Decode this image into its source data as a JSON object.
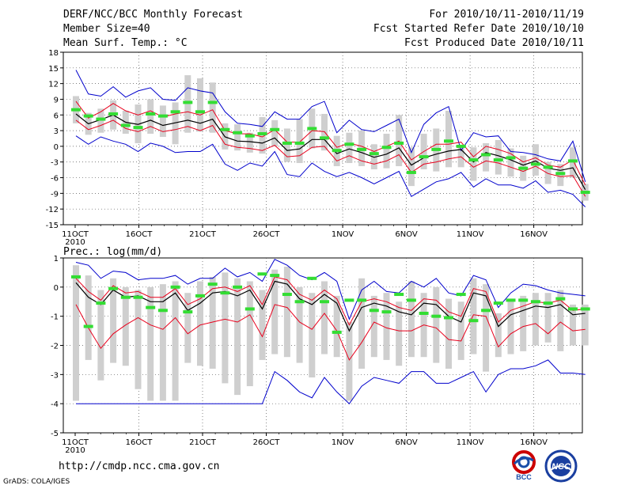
{
  "header": {
    "title": "DERF/NCC/BCC Monthly Forecast",
    "member_size": "Member Size=40",
    "variable": "Mean Surf. Temp.: °C",
    "period": "For 2010/10/11-2010/11/19",
    "started": "Fcst Started Refer Date 2010/10/10",
    "produced": "Fcst Produced Date 2010/10/11"
  },
  "footer": {
    "url": "http://cmdp.ncc.cma.gov.cn",
    "grads": "GrADS: COLA/IGES",
    "logo_bcc": "BCC",
    "logo_ncc": "NCC"
  },
  "colors": {
    "bar": "#cfcfcf",
    "mean": "#000000",
    "spread": "#e8001c",
    "extreme": "#0000cc",
    "marker": "#33dd33",
    "grid": "#555555"
  },
  "chart_data": [
    {
      "type": "line",
      "title": "Mean Surf. Temp.: °C",
      "ylim": [
        -15,
        18
      ],
      "yticks": [
        -15,
        -12,
        -9,
        -6,
        -3,
        0,
        3,
        6,
        9,
        12,
        15,
        18
      ],
      "x_day_range": [
        1,
        40
      ],
      "xticks": [
        {
          "day": 1,
          "label": "11OCT"
        },
        {
          "day": 6,
          "label": "16OCT"
        },
        {
          "day": 11,
          "label": "21OCT"
        },
        {
          "day": 16,
          "label": "26OCT"
        },
        {
          "day": 22,
          "label": "1NOV"
        },
        {
          "day": 27,
          "label": "6NOV"
        },
        {
          "day": 32,
          "label": "11NOV"
        },
        {
          "day": 37,
          "label": "16NOV"
        }
      ],
      "year_label": "2010",
      "series": [
        {
          "name": "mean",
          "values": [
            6.2,
            4.3,
            5.1,
            6.0,
            4.6,
            4.2,
            5.0,
            4.0,
            4.5,
            5.0,
            4.4,
            5.2,
            1.8,
            1.0,
            0.9,
            0.6,
            1.6,
            -0.8,
            -0.5,
            1.3,
            1.3,
            -1.4,
            -0.5,
            -1.2,
            -2.1,
            -1.5,
            -0.3,
            -3.6,
            -2.2,
            -1.5,
            -0.9,
            -0.6,
            -3.0,
            -1.2,
            -1.8,
            -2.6,
            -3.6,
            -2.8,
            -4.2,
            -4.6,
            -4.1,
            -8.3
          ]
        },
        {
          "name": "upper_spread",
          "values": [
            8.6,
            5.4,
            6.6,
            8.2,
            6.8,
            6.0,
            6.8,
            5.6,
            6.2,
            6.6,
            6.0,
            7.0,
            3.0,
            2.4,
            2.4,
            1.8,
            3.2,
            0.8,
            0.8,
            3.0,
            2.8,
            -0.2,
            0.6,
            0.0,
            -1.0,
            0.0,
            1.0,
            -2.6,
            -1.0,
            0.4,
            0.4,
            0.8,
            -2.0,
            0.0,
            -0.6,
            -1.4,
            -3.0,
            -2.2,
            -3.6,
            -4.0,
            -2.6,
            -7.4
          ]
        },
        {
          "name": "lower_spread",
          "values": [
            5.0,
            3.2,
            4.0,
            5.0,
            3.4,
            2.8,
            3.8,
            2.8,
            3.2,
            3.8,
            3.0,
            4.0,
            0.4,
            -0.2,
            -0.4,
            -0.8,
            0.2,
            -2.0,
            -1.8,
            -0.2,
            0.0,
            -2.8,
            -1.8,
            -2.8,
            -3.4,
            -2.8,
            -1.6,
            -5.0,
            -3.4,
            -3.0,
            -2.4,
            -2.0,
            -4.0,
            -2.8,
            -3.2,
            -4.0,
            -4.8,
            -3.8,
            -5.2,
            -5.8,
            -5.6,
            -9.6
          ]
        },
        {
          "name": "ensemble_max",
          "values": [
            14.6,
            10.0,
            9.6,
            11.4,
            9.4,
            10.6,
            11.2,
            9.0,
            8.8,
            11.2,
            10.6,
            10.2,
            6.6,
            4.4,
            4.2,
            3.8,
            6.6,
            5.2,
            5.2,
            7.6,
            8.6,
            2.6,
            5.0,
            3.2,
            2.8,
            4.0,
            5.2,
            -1.2,
            4.2,
            6.4,
            7.6,
            -0.8,
            2.6,
            1.8,
            2.0,
            -1.0,
            -1.2,
            -1.6,
            -2.4,
            -2.8,
            1.0,
            -6.8
          ]
        },
        {
          "name": "ensemble_min",
          "values": [
            2.0,
            0.4,
            1.8,
            1.0,
            0.4,
            -1.0,
            0.6,
            0.0,
            -1.2,
            -1.0,
            -1.0,
            0.4,
            -3.4,
            -4.6,
            -3.2,
            -3.8,
            -1.0,
            -5.4,
            -5.8,
            -3.2,
            -4.8,
            -5.8,
            -5.0,
            -6.0,
            -7.2,
            -6.0,
            -4.8,
            -9.6,
            -8.2,
            -6.8,
            -6.2,
            -5.0,
            -7.8,
            -6.2,
            -7.4,
            -7.4,
            -8.0,
            -6.6,
            -8.8,
            -8.4,
            -9.2,
            -11.6
          ]
        },
        {
          "name": "bar_top",
          "values": [
            9.6,
            6.4,
            7.2,
            8.8,
            6.8,
            8.0,
            9.0,
            7.8,
            8.4,
            13.6,
            13.0,
            12.2,
            4.4,
            4.2,
            2.6,
            5.6,
            5.0,
            3.4,
            5.2,
            7.2,
            6.2,
            2.0,
            2.6,
            3.0,
            0.4,
            2.4,
            6.0,
            -0.2,
            2.4,
            3.4,
            6.8,
            0.2,
            -0.2,
            0.6,
            1.2,
            -0.4,
            -1.8,
            0.4,
            -3.0,
            -3.4,
            -0.2,
            -7.2
          ]
        },
        {
          "name": "bar_bottom",
          "values": [
            4.4,
            2.2,
            2.6,
            3.2,
            2.4,
            0.6,
            2.4,
            1.8,
            0.4,
            2.6,
            2.8,
            2.6,
            -0.6,
            -0.8,
            -1.2,
            -1.4,
            0.0,
            -3.0,
            -3.2,
            -0.4,
            -0.8,
            -3.8,
            -3.2,
            -3.8,
            -4.4,
            -4.2,
            -3.8,
            -7.6,
            -4.4,
            -4.8,
            -4.0,
            -4.0,
            -6.6,
            -4.8,
            -5.4,
            -5.8,
            -6.6,
            -5.6,
            -7.2,
            -7.6,
            -6.0,
            -10.4
          ]
        },
        {
          "name": "observed_marker",
          "values": [
            7.0,
            5.8,
            5.2,
            6.2,
            4.0,
            3.6,
            6.2,
            5.8,
            6.6,
            8.4,
            6.6,
            8.4,
            3.2,
            2.6,
            2.0,
            2.4,
            3.2,
            0.6,
            0.6,
            3.4,
            1.6,
            -0.8,
            0.4,
            -0.6,
            -1.4,
            -0.2,
            0.6,
            -5.0,
            -2.0,
            -0.6,
            1.0,
            0.0,
            -2.6,
            -1.6,
            -2.6,
            -2.2,
            -4.2,
            -3.4,
            -4.0,
            -5.2,
            -2.8,
            -8.8
          ]
        }
      ]
    },
    {
      "type": "line",
      "title": "Prec.: log(mm/d)",
      "ylim": [
        -5,
        1
      ],
      "yticks": [
        -5,
        -4,
        -3,
        -2,
        -1,
        0,
        1
      ],
      "x_day_range": [
        1,
        40
      ],
      "xticks": [
        {
          "day": 1,
          "label": "11OCT"
        },
        {
          "day": 6,
          "label": "16OCT"
        },
        {
          "day": 11,
          "label": "21OCT"
        },
        {
          "day": 16,
          "label": "26OCT"
        },
        {
          "day": 22,
          "label": "1NOV"
        },
        {
          "day": 27,
          "label": "6NOV"
        },
        {
          "day": 32,
          "label": "11NOV"
        },
        {
          "day": 37,
          "label": "16NOV"
        }
      ],
      "year_label": "2010",
      "series": [
        {
          "name": "mean",
          "values": [
            0.15,
            -0.35,
            -0.6,
            -0.1,
            -0.35,
            -0.3,
            -0.5,
            -0.5,
            -0.2,
            -0.8,
            -0.55,
            -0.2,
            -0.15,
            -0.3,
            -0.1,
            -0.75,
            0.2,
            0.1,
            -0.4,
            -0.6,
            -0.25,
            -0.55,
            -1.5,
            -0.7,
            -0.55,
            -0.65,
            -0.85,
            -0.95,
            -0.55,
            -0.6,
            -1.0,
            -1.2,
            -0.2,
            -0.3,
            -1.35,
            -0.95,
            -0.8,
            -0.65,
            -0.7,
            -0.6,
            -0.95,
            -0.9
          ]
        },
        {
          "name": "upper_spread",
          "values": [
            0.3,
            -0.15,
            -0.45,
            0.05,
            -0.2,
            -0.15,
            -0.35,
            -0.35,
            -0.05,
            -0.6,
            -0.4,
            -0.05,
            0.0,
            -0.15,
            0.05,
            -0.6,
            0.35,
            0.25,
            -0.25,
            -0.45,
            -0.1,
            -0.4,
            -1.3,
            -0.5,
            -0.4,
            -0.5,
            -0.7,
            -0.8,
            -0.4,
            -0.45,
            -0.85,
            -1.0,
            -0.05,
            -0.15,
            -1.2,
            -0.8,
            -0.65,
            -0.5,
            -0.55,
            -0.45,
            -0.8,
            -0.75
          ]
        },
        {
          "name": "lower_spread",
          "values": [
            -0.6,
            -1.4,
            -2.1,
            -1.6,
            -1.3,
            -1.05,
            -1.3,
            -1.45,
            -1.05,
            -1.6,
            -1.3,
            -1.2,
            -1.1,
            -1.2,
            -0.95,
            -1.7,
            -0.6,
            -0.7,
            -1.2,
            -1.45,
            -0.9,
            -1.5,
            -2.5,
            -1.9,
            -1.2,
            -1.4,
            -1.5,
            -1.5,
            -1.3,
            -1.4,
            -1.8,
            -1.85,
            -0.95,
            -1.0,
            -2.05,
            -1.6,
            -1.35,
            -1.25,
            -1.6,
            -1.2,
            -1.5,
            -1.45
          ]
        },
        {
          "name": "ensemble_max",
          "values": [
            0.85,
            0.75,
            0.3,
            0.55,
            0.5,
            0.25,
            0.3,
            0.3,
            0.4,
            0.1,
            0.3,
            0.3,
            0.65,
            0.35,
            0.5,
            0.2,
            0.95,
            0.75,
            0.4,
            0.25,
            0.5,
            0.2,
            -1.1,
            -0.1,
            0.2,
            -0.15,
            -0.2,
            0.2,
            0.0,
            0.3,
            -0.2,
            -0.3,
            0.4,
            0.25,
            -0.7,
            -0.2,
            0.1,
            0.05,
            -0.1,
            -0.2,
            -0.25,
            -0.3
          ]
        },
        {
          "name": "ensemble_min",
          "values": [
            -4.0,
            -4.0,
            -4.0,
            -4.0,
            -4.0,
            -4.0,
            -4.0,
            -4.0,
            -4.0,
            -4.0,
            -4.0,
            -4.0,
            -4.0,
            -4.0,
            -4.0,
            -4.0,
            -2.9,
            -3.2,
            -3.6,
            -3.8,
            -3.1,
            -3.6,
            -4.0,
            -3.4,
            -3.1,
            -3.2,
            -3.3,
            -2.9,
            -2.9,
            -3.3,
            -3.3,
            -3.1,
            -2.9,
            -3.6,
            -3.0,
            -2.8,
            -2.8,
            -2.7,
            -2.5,
            -2.95,
            -2.95,
            -3.0
          ]
        },
        {
          "name": "bar_top",
          "values": [
            0.75,
            0.4,
            -0.1,
            0.3,
            0.0,
            -0.1,
            0.0,
            0.1,
            0.2,
            -0.2,
            0.2,
            0.35,
            0.5,
            0.3,
            0.2,
            -0.1,
            0.6,
            0.7,
            0.0,
            -0.2,
            0.2,
            -0.3,
            -1.2,
            0.3,
            -0.3,
            -0.2,
            -0.5,
            0.2,
            -0.2,
            0.0,
            -0.4,
            -0.5,
            0.3,
            0.1,
            -0.9,
            -0.5,
            -0.3,
            -0.2,
            -0.2,
            -0.1,
            -0.6,
            -0.6
          ]
        },
        {
          "name": "bar_bottom",
          "values": [
            -3.9,
            -2.5,
            -3.2,
            -2.6,
            -2.7,
            -3.5,
            -3.9,
            -3.9,
            -3.9,
            -2.6,
            -2.7,
            -2.8,
            -3.3,
            -3.7,
            -3.4,
            -2.5,
            -2.3,
            -2.4,
            -2.6,
            -3.1,
            -2.3,
            -2.4,
            -3.9,
            -2.8,
            -2.4,
            -2.5,
            -2.7,
            -2.4,
            -2.4,
            -2.6,
            -2.8,
            -2.5,
            -2.3,
            -2.9,
            -2.4,
            -2.3,
            -2.2,
            -2.0,
            -1.9,
            -2.2,
            -2.0,
            -2.0
          ]
        },
        {
          "name": "observed_marker",
          "values": [
            0.35,
            -1.35,
            -0.55,
            -0.05,
            -0.35,
            -0.35,
            -0.7,
            -0.8,
            0.0,
            -0.85,
            -0.3,
            0.1,
            -0.2,
            0.0,
            -0.75,
            0.45,
            0.4,
            -0.25,
            -0.5,
            0.3,
            -0.5,
            -1.55,
            -0.45,
            -0.45,
            -0.8,
            -0.85,
            -0.25,
            -0.45,
            -0.9,
            -1.0,
            -1.05,
            -0.25,
            -1.15,
            -0.8,
            -0.55,
            -0.45,
            -0.45,
            -0.5,
            -0.55,
            -0.4,
            -0.75,
            -0.75
          ]
        }
      ]
    }
  ]
}
